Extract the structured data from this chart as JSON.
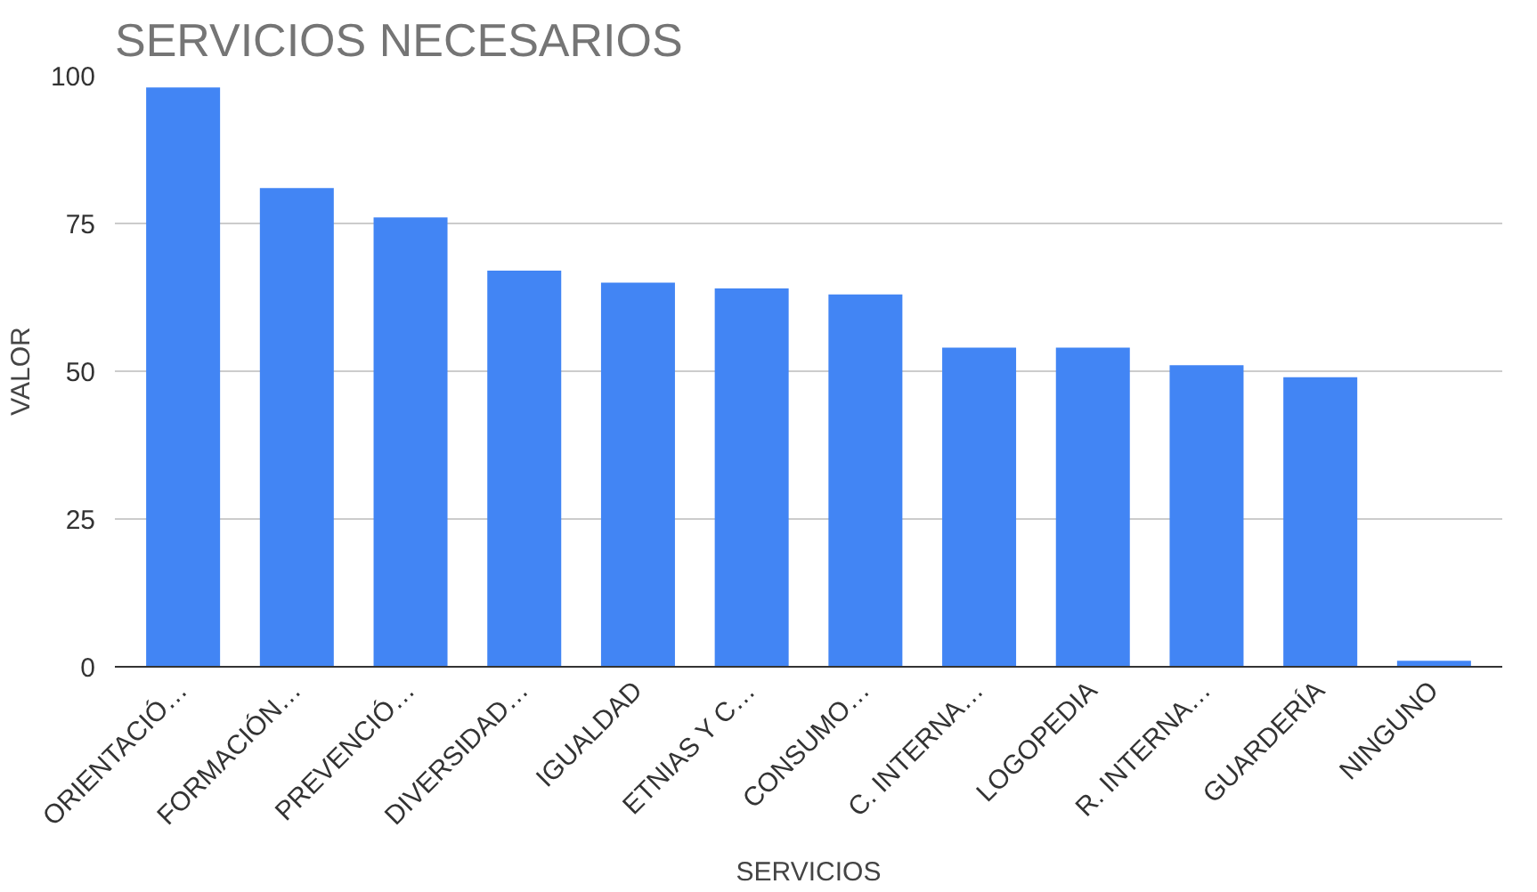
{
  "chart_data": {
    "type": "bar",
    "title": "SERVICIOS NECESARIOS",
    "xlabel": "SERVICIOS",
    "ylabel": "VALOR",
    "categories": [
      "ORIENTACIÓ…",
      "FORMACIÓN…",
      "PREVENCIÓ…",
      "DIVERSIDAD…",
      "IGUALDAD",
      "ETNIAS Y C…",
      "CONSUMO…",
      "C. INTERNA…",
      "LOGOPEDIA",
      "R. INTERNA…",
      "GUARDERÍA",
      "NINGUNO"
    ],
    "values": [
      98,
      81,
      76,
      67,
      65,
      64,
      63,
      54,
      54,
      51,
      49,
      1
    ],
    "color": "#4285f4",
    "ylim": [
      0,
      100
    ],
    "yticks": [
      0,
      25,
      50,
      75,
      100
    ],
    "grid": "y"
  }
}
